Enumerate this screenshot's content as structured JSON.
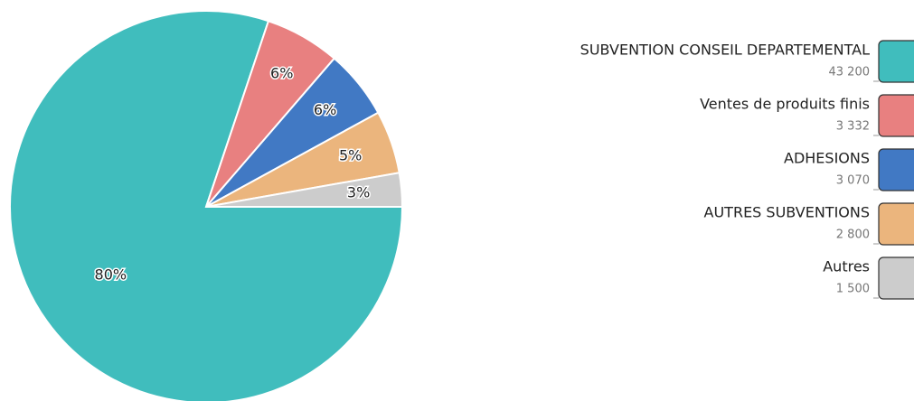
{
  "chart_data": {
    "type": "pie",
    "categories": [
      "SUBVENTION CONSEIL DEPARTEMENTAL",
      "Ventes de produits finis",
      "ADHESIONS",
      "AUTRES SUBVENTIONS",
      "Autres"
    ],
    "values": [
      43200,
      3332,
      3070,
      2800,
      1500
    ],
    "value_labels": [
      "43 200",
      "3 332",
      "3 070",
      "2 800",
      "1 500"
    ],
    "percent_labels": [
      "80%",
      "6%",
      "6%",
      "5%",
      "3%"
    ],
    "colors": [
      "#40bdbd",
      "#e88080",
      "#4179c4",
      "#ebb57d",
      "#cccccc"
    ]
  }
}
